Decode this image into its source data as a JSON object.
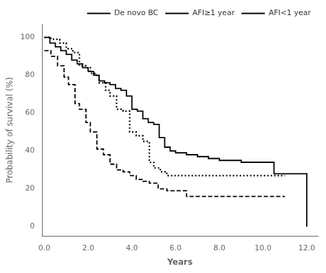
{
  "chart_data": {
    "type": "line",
    "title": "",
    "x_label": "Years",
    "y_label": "Probability of survival (%)",
    "xlim": [
      -0.1,
      12.5
    ],
    "ylim": [
      -5,
      107
    ],
    "xticks": [
      {
        "value": 0,
        "label": "0.0"
      },
      {
        "value": 2,
        "label": "2.0"
      },
      {
        "value": 4,
        "label": "4.0"
      },
      {
        "value": 6,
        "label": "6.0"
      },
      {
        "value": 8,
        "label": "8.0"
      },
      {
        "value": 10,
        "label": "10.0"
      },
      {
        "value": 12,
        "label": "12.0"
      }
    ],
    "yticks": [
      0,
      20,
      40,
      60,
      80,
      100
    ],
    "grid": false,
    "legend": "upper right",
    "series": [
      {
        "name": "De novo BC",
        "color": "#000000",
        "line_style": "solid",
        "x": [
          0,
          0.25,
          0.25,
          0.5,
          0.5,
          0.75,
          0.75,
          1.0,
          1.0,
          1.25,
          1.25,
          1.5,
          1.5,
          1.75,
          1.75,
          2.0,
          2.0,
          2.25,
          2.25,
          2.5,
          2.5,
          2.75,
          2.75,
          3.0,
          3.0,
          3.25,
          3.25,
          3.5,
          3.5,
          3.75,
          3.75,
          4.0,
          4.0,
          4.25,
          4.25,
          4.5,
          4.5,
          4.75,
          4.75,
          5.0,
          5.0,
          5.25,
          5.25,
          5.5,
          5.5,
          5.75,
          5.75,
          6.0,
          6.0,
          6.5,
          6.5,
          7.0,
          7.0,
          7.5,
          7.5,
          8.0,
          8.0,
          9.0,
          9.0,
          10.5,
          10.5,
          12.0,
          12.0,
          12.0
        ],
        "values": [
          100,
          100,
          97,
          97,
          95,
          95,
          93,
          93,
          91,
          91,
          88,
          88,
          86,
          86,
          84,
          84,
          82,
          82,
          80,
          80,
          77,
          77,
          76,
          76,
          75,
          75,
          73,
          73,
          72,
          72,
          69,
          69,
          62,
          62,
          61,
          61,
          57,
          57,
          55,
          55,
          54,
          54,
          47,
          47,
          42,
          42,
          40,
          40,
          39,
          39,
          38,
          38,
          37,
          37,
          36,
          36,
          35,
          35,
          34,
          34,
          28,
          28,
          0,
          0
        ]
      },
      {
        "name": "AFI≥1 year",
        "color": "#000000",
        "line_style": "dotted",
        "x": [
          0,
          0.3,
          0.3,
          0.7,
          0.7,
          1.0,
          1.0,
          1.3,
          1.3,
          1.6,
          1.6,
          1.9,
          1.9,
          2.1,
          2.1,
          2.3,
          2.3,
          2.5,
          2.5,
          2.8,
          2.8,
          3.0,
          3.0,
          3.3,
          3.3,
          3.6,
          3.6,
          3.9,
          3.9,
          4.2,
          4.2,
          4.5,
          4.5,
          4.8,
          4.8,
          5.0,
          5.0,
          5.3,
          5.3,
          5.6,
          5.6,
          6.0,
          6.0,
          11.0
        ],
        "values": [
          100,
          100,
          99,
          99,
          97,
          97,
          94,
          94,
          92,
          92,
          85,
          85,
          84,
          84,
          81,
          81,
          80,
          80,
          76,
          76,
          72,
          72,
          69,
          69,
          62,
          62,
          61,
          61,
          50,
          50,
          48,
          48,
          45,
          45,
          34,
          34,
          31,
          31,
          29,
          29,
          27,
          27,
          27,
          27
        ]
      },
      {
        "name": "AFI<1 year",
        "color": "#000000",
        "line_style": "dashed",
        "x": [
          0,
          0.3,
          0.3,
          0.6,
          0.6,
          0.9,
          0.9,
          1.1,
          1.1,
          1.4,
          1.4,
          1.6,
          1.6,
          1.9,
          1.9,
          2.1,
          2.1,
          2.4,
          2.4,
          2.7,
          2.7,
          3.0,
          3.0,
          3.3,
          3.3,
          3.6,
          3.6,
          3.9,
          3.9,
          4.2,
          4.2,
          4.5,
          4.5,
          4.8,
          4.8,
          5.2,
          5.2,
          5.6,
          5.6,
          6.0,
          6.0,
          6.5,
          6.5,
          7.0,
          7.0,
          8.0,
          8.0,
          8.5,
          8.5,
          11.0
        ],
        "values": [
          93,
          93,
          90,
          90,
          85,
          85,
          79,
          79,
          75,
          75,
          65,
          65,
          62,
          62,
          55,
          55,
          50,
          50,
          41,
          41,
          38,
          38,
          33,
          33,
          30,
          30,
          29,
          29,
          27,
          27,
          25,
          25,
          24,
          24,
          23,
          23,
          20,
          20,
          19,
          19,
          19,
          19,
          16,
          16,
          16,
          16,
          16,
          16,
          16,
          16
        ]
      }
    ]
  }
}
